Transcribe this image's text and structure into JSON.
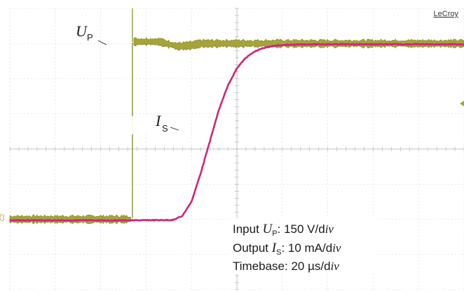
{
  "brand": "LeCroy",
  "chart_data": {
    "type": "line",
    "title": "",
    "xlabel": "",
    "ylabel": "",
    "grid": true,
    "divisions": {
      "x": 10,
      "y": 8
    },
    "xlim": [
      0,
      10
    ],
    "ylim": [
      0,
      8
    ],
    "channel_marker": "C2",
    "series": [
      {
        "name": "U_P",
        "label_main": "U",
        "label_sub": "P",
        "color": "#7a8a1f",
        "band_color": "#a7a23a",
        "x": [
          0,
          2.1,
          2.7,
          2.71,
          3.3,
          3.5,
          3.7,
          4.0,
          4.2,
          10
        ],
        "values": [
          2.0,
          2.0,
          2.0,
          7.05,
          7.05,
          6.98,
          6.92,
          6.95,
          7.0,
          7.0
        ]
      },
      {
        "name": "I_S",
        "label_main": "I",
        "label_sub": "S",
        "color": "#d0257a",
        "x": [
          0,
          2.7,
          3.6,
          3.8,
          4.0,
          4.2,
          4.4,
          4.6,
          4.8,
          5.0,
          5.2,
          5.4,
          5.6,
          5.8,
          6.0,
          6.3,
          6.6,
          7.0,
          10
        ],
        "values": [
          1.97,
          1.97,
          1.98,
          2.1,
          2.5,
          3.3,
          4.2,
          5.1,
          5.8,
          6.3,
          6.6,
          6.78,
          6.88,
          6.93,
          6.96,
          6.97,
          6.98,
          6.98,
          6.98
        ]
      }
    ],
    "annotations": [
      {
        "parts": [
          "Input ",
          "U",
          "P",
          ": 150 V/d",
          "iv"
        ]
      },
      {
        "parts": [
          "Output ",
          "I",
          "S",
          ": 10 mA/d",
          "iv"
        ]
      },
      {
        "parts": [
          "Timebase: 20 µs/d",
          "iv"
        ]
      }
    ]
  }
}
